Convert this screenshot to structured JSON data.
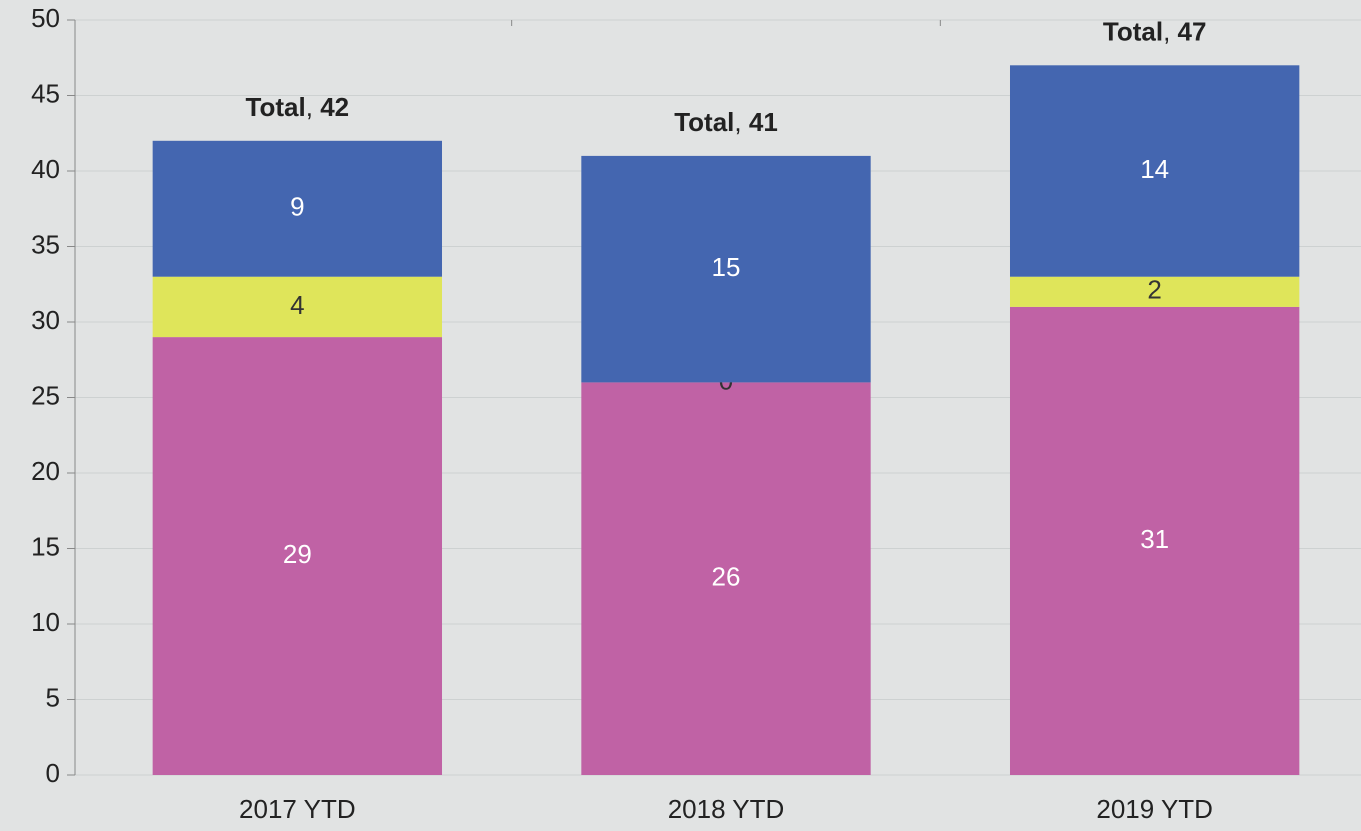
{
  "chart_data": {
    "type": "stacked_bar",
    "categories": [
      "2017 YTD",
      "2018 YTD",
      "2019 YTD"
    ],
    "series": [
      {
        "color": "#c062a5",
        "label_color": "#ffffff",
        "values": [
          29,
          26,
          31
        ]
      },
      {
        "color": "#dfe55a",
        "label_color": "#333333",
        "values": [
          4,
          0,
          2
        ]
      },
      {
        "color": "#4466b0",
        "label_color": "#ffffff",
        "values": [
          9,
          15,
          14
        ]
      }
    ],
    "totals": [
      42,
      41,
      47
    ],
    "total_labels": [
      "Total, 42",
      "Total, 41",
      "Total, 47"
    ],
    "ylim": [
      0,
      50
    ],
    "yticks": [
      0,
      5,
      10,
      15,
      20,
      25,
      30,
      35,
      40,
      45,
      50
    ],
    "grid": true
  }
}
